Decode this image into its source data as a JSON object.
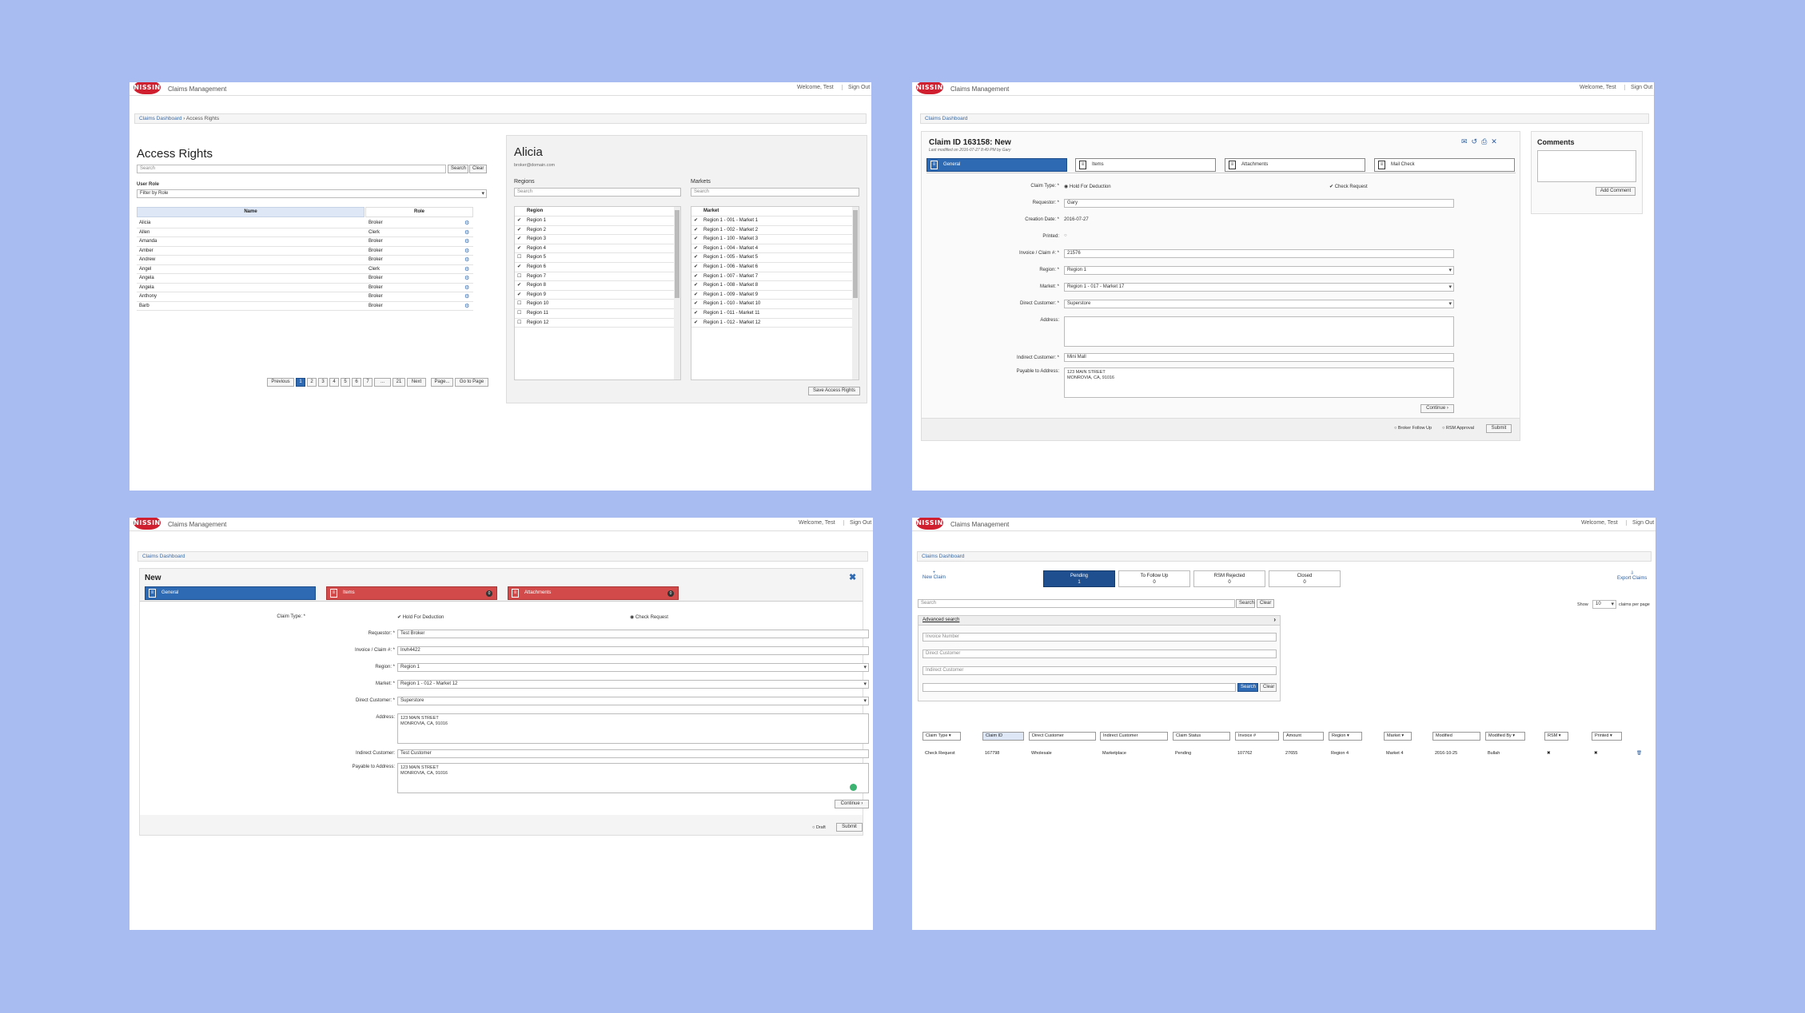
{
  "common": {
    "brand": "NISSIN",
    "app_title": "Claims Management",
    "welcome": "Welcome, Test",
    "sign_out": "Sign Out"
  },
  "p1": {
    "breadcrumb": {
      "home": "Claims Dashboard",
      "sep": "›",
      "current": "Access Rights"
    },
    "title": "Access Rights",
    "search_placeholder": "Search",
    "search_btn": "Search",
    "clear_btn": "Clear",
    "user_role_label": "User Role",
    "role_filter": "Filter by Role",
    "col_name": "Name",
    "col_role": "Role",
    "users": [
      {
        "name": "Alicia",
        "role": "Broker"
      },
      {
        "name": "Allen",
        "role": "Clerk"
      },
      {
        "name": "Amanda",
        "role": "Broker"
      },
      {
        "name": "Amber",
        "role": "Broker"
      },
      {
        "name": "Andrew",
        "role": "Broker"
      },
      {
        "name": "Angel",
        "role": "Clerk"
      },
      {
        "name": "Angela",
        "role": "Broker"
      },
      {
        "name": "Angela",
        "role": "Broker"
      },
      {
        "name": "Anthony",
        "role": "Broker"
      },
      {
        "name": "Barb",
        "role": "Broker"
      }
    ],
    "pager": {
      "prev": "Previous",
      "pages": [
        "1",
        "2",
        "3",
        "4",
        "5",
        "6",
        "7",
        "...",
        "21"
      ],
      "next": "Next",
      "page_placeholder": "Page...",
      "goto": "Go to Page"
    },
    "detail": {
      "name": "Alicia",
      "email": "broker@domain.com",
      "regions_label": "Regions",
      "markets_label": "Markets",
      "search_placeholder": "Search",
      "region_header": "Region",
      "market_header": "Market",
      "regions": [
        "Region 1",
        "Region 2",
        "Region 3",
        "Region 4",
        "Region 5",
        "Region 6",
        "Region 7",
        "Region 8",
        "Region 9",
        "Region 10",
        "Region 11",
        "Region 12"
      ],
      "region_checks": [
        true,
        true,
        true,
        true,
        false,
        true,
        false,
        true,
        true,
        false,
        false,
        false
      ],
      "markets": [
        "Region 1 - 001 - Market 1",
        "Region 1 - 002 - Market 2",
        "Region 1 - 100 - Market 3",
        "Region 1 - 004 - Market 4",
        "Region 1 - 005 - Market 5",
        "Region 1 - 006 - Market 6",
        "Region 1 - 007 - Market 7",
        "Region 1 - 008 - Market 8",
        "Region 1 - 009 - Market 9",
        "Region 1 - 010 - Market 10",
        "Region 1 - 011 - Market 11",
        "Region 1 - 012 - Market 12"
      ],
      "save_btn": "Save Access Rights"
    }
  },
  "p2": {
    "breadcrumb": "Claims Dashboard",
    "title": "Claim ID 163158: New",
    "modified": "Last modified on 2016-07-27 8:49 PM by Gary",
    "tabs": [
      "General",
      "Items",
      "Attachments",
      "Mail Check"
    ],
    "fields": {
      "claim_type_label": "Claim Type: *",
      "hold": "Hold For Deduction",
      "check": "Check Request",
      "requestor_label": "Requestor: *",
      "requestor": "Gary",
      "created_label": "Creation Date: *",
      "created": "2016-07-27",
      "printed_label": "Printed:",
      "invoice_label": "Invoice / Claim #: *",
      "invoice": "21576",
      "region_label": "Region: *",
      "region": "Region 1",
      "market_label": "Market: *",
      "market": "Region 1 - 017 - Market 17",
      "direct_label": "Direct Customer: *",
      "direct": "Superstore",
      "address_label": "Address:",
      "indirect_label": "Indirect Customer: *",
      "indirect": "Mini Mall",
      "payable_label": "Payable to Address:",
      "payable_1": "123 MAIN STREET",
      "payable_2": "MONROVIA, CA, 91016"
    },
    "continue_btn": "Continue ›",
    "broker_followup": "Broker Follow Up",
    "rsm_approval": "RSM Approval",
    "submit_btn": "Submit",
    "comments_title": "Comments",
    "add_comment": "Add Comment"
  },
  "p3": {
    "breadcrumb": "Claims Dashboard",
    "title": "New",
    "tabs": [
      "General",
      "Items",
      "Attachments"
    ],
    "items_badge": "0",
    "attach_badge": "0",
    "fields": {
      "claim_type_label": "Claim Type: *",
      "hold": "Hold For Deduction",
      "check": "Check Request",
      "requestor_label": "Requestor: *",
      "requestor": "Test Broker",
      "invoice_label": "Invoice / Claim #: *",
      "invoice": "Invh4422",
      "region_label": "Region: *",
      "region": "Region 1",
      "market_label": "Market: *",
      "market": "Region 1 - 012 - Market 12",
      "direct_label": "Direct Customer: *",
      "direct": "Superstore",
      "address_label": "Address:",
      "address_1": "123 MAIN STREET",
      "address_2": "MONROVIA, CA, 91016",
      "indirect_label": "Indirect Customer:",
      "indirect": "Test Customer",
      "payable_label": "Payable to Address:",
      "payable_1": "123 MAIN STREET",
      "payable_2": "MONROVIA, CA, 91016"
    },
    "continue_btn": "Continue ›",
    "draft": "Draft",
    "submit_btn": "Submit"
  },
  "p4": {
    "breadcrumb": "Claims Dashboard",
    "new_claim": "New Claim",
    "export": "Export Claims",
    "stats": [
      {
        "label": "Pending",
        "count": "1"
      },
      {
        "label": "To Follow Up",
        "count": "0"
      },
      {
        "label": "RSM Rejected",
        "count": "0"
      },
      {
        "label": "Closed",
        "count": "0"
      }
    ],
    "show_label": "Show",
    "show_value": "10",
    "per_page": "claims per page",
    "search_placeholder": "Search",
    "search_btn": "Search",
    "clear_btn": "Clear",
    "advanced": "Advanced search",
    "adv_invoice": "Invoice Number",
    "adv_direct": "Direct Customer",
    "adv_indirect": "Indirect Customer",
    "adv_search": "Search",
    "adv_clear": "Clear",
    "headers": [
      "Claim Type ▾",
      "Claim ID",
      "Direct Customer",
      "Indirect Customer",
      "Claim Status",
      "Invoice #",
      "Amount",
      "Region ▾",
      "Market ▾",
      "Modified",
      "Modified By ▾",
      "RSM ▾",
      "Printed ▾"
    ],
    "row": [
      "Check Request",
      "167798",
      "Wholesale",
      "Marketplace",
      "Pending",
      "107762",
      "27655",
      "Region 4",
      "Market 4",
      "2016-10-25",
      "Bullah",
      "✖",
      "✖"
    ]
  }
}
